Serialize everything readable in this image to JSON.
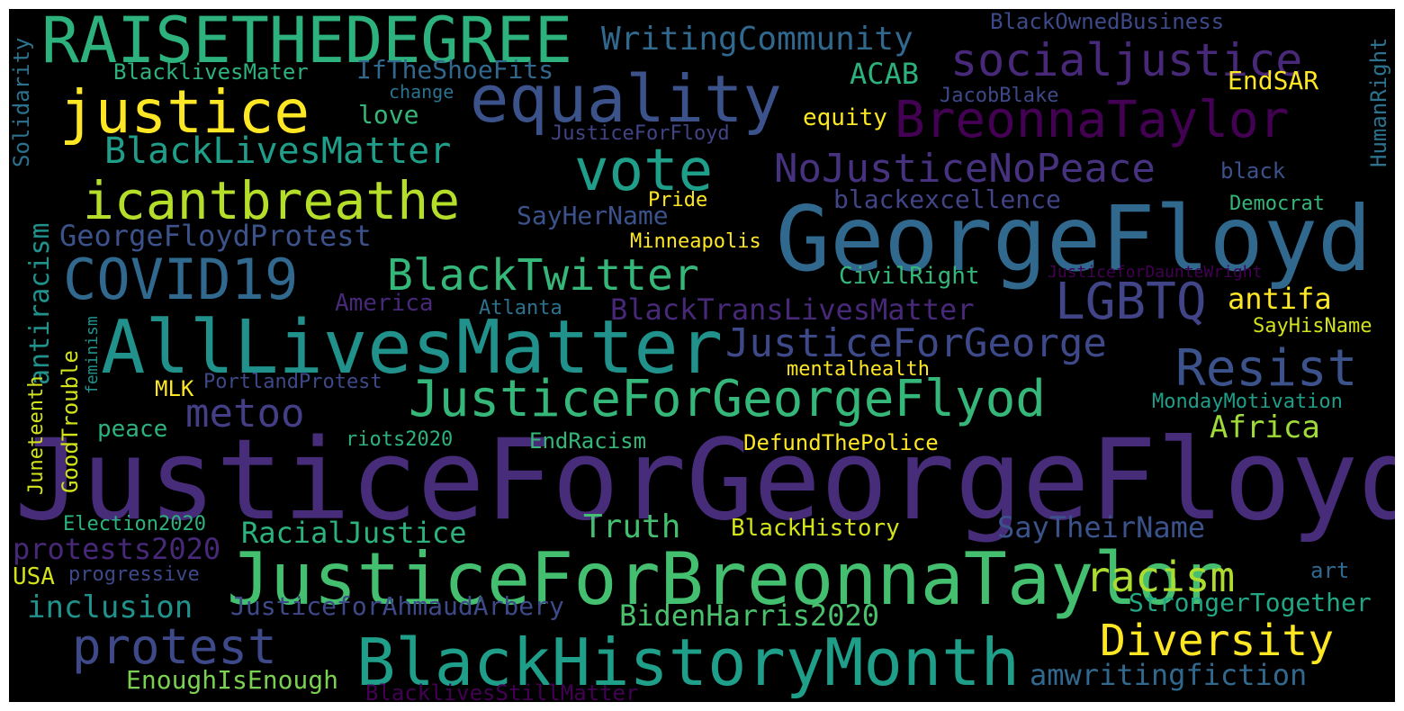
{
  "words": {
    "justiceforgeorgefloyd": "JusticeForGeorgeFloyd",
    "georgefloyd": "GeorgeFloyd",
    "justiceforbreonnataylor": "JusticeForBreonnaTaylor",
    "alllivesmatter": "AllLivesMatter",
    "raisethedegree": "RAISETHEDEGREE",
    "blackhistorymonth": "BlackHistoryMonth",
    "justiceforgeorgeflyod": "JusticeForGeorgeFlyod",
    "equality": "equality",
    "breonnataylor": "BreonnaTaylor",
    "justice": "justice",
    "icantbreathe": "icantbreathe",
    "vote": "vote",
    "covid19": "COVID19",
    "blacktwitter": "BlackTwitter",
    "justiceforgeorge": "JusticeForGeorge",
    "resist": "Resist",
    "socialjustice": "socialjustice",
    "nojusticenopeace": "NoJusticeNoPeace",
    "protest": "protest",
    "diversity": "Diversity",
    "racism": "racism",
    "lgbtq": "LGBTQ",
    "metoo": "metoo",
    "blacklivesmatter": "BlackLivesMatter",
    "writingcommunity": "WritingCommunity",
    "georgefloydprotest": "GeorgeFloydProtest",
    "blacktranslivesmatter": "BlackTransLivesMatter",
    "racialjustice": "RacialJustice",
    "amwritingfiction": "amwritingfiction",
    "saytheirname": "SayTheirName",
    "bidenharris2020": "BidenHarris2020",
    "justiceforahmaudarbery": "JusticeforAhmaudArbery",
    "inclusion": "inclusion",
    "truth": "Truth",
    "strongertogether": "StrongerTogether",
    "protests2020": "protests2020",
    "antiracism": "antiracism",
    "enoughisenough": "EnoughIsEnough",
    "africa": "Africa",
    "antifa": "antifa",
    "acab": "ACAB",
    "iftheshoefits": "IfTheShoeFits",
    "sayhername": "SayHerName",
    "blackexcellence": "blackexcellence",
    "blackhistory": "BlackHistory",
    "blacklivesstillmatter": "BlacklivesStillMatter",
    "blacklivesmater": "BlacklivesMater",
    "blackownedbusiness": "BlackOwnedBusiness",
    "love": "love",
    "equity": "equity",
    "endsar": "EndSAR",
    "jacobblake": "JacobBlake",
    "justiceforfloyd": "JusticeForFloyd",
    "civilright": "CivilRight",
    "america": "America",
    "atlanta": "Atlanta",
    "portlandprotest": "PortlandProtest",
    "mlk": "MLK",
    "mentalhealth": "mentalhealth",
    "mondaymotivation": "MondayMotivation",
    "peace": "peace",
    "riots2020": "riots2020",
    "endracism": "EndRacism",
    "defundthepolice": "DefundThePolice",
    "election2020": "Election2020",
    "usa": "USA",
    "progressive": "progressive",
    "art": "art",
    "black": "black",
    "democrat": "Democrat",
    "pride": "Pride",
    "minneapolis": "Minneapolis",
    "sayhisname": "SayHisName",
    "change": "change",
    "justicefordaunte": "JusticeforDaunteWright",
    "solidarity": "Solidarity",
    "humanright": "HumanRight",
    "feminism": "feminism",
    "goodtrouble": "GoodTrouble",
    "juneteenth": "Juneteenth"
  }
}
